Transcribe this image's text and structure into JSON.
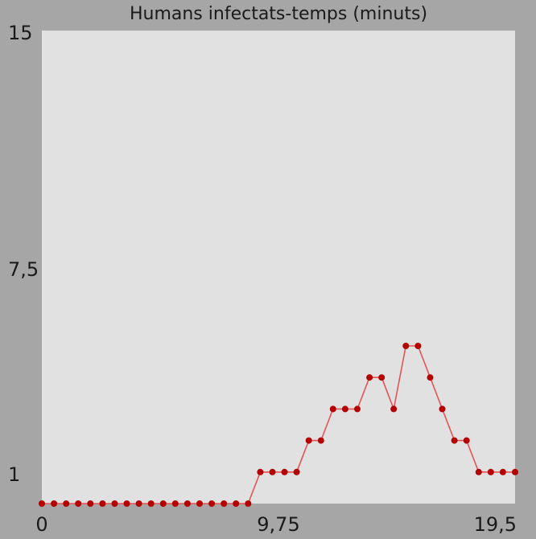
{
  "chart_data": {
    "type": "line",
    "title": "Humans infectats-temps (minuts)",
    "xlabel": "",
    "ylabel": "",
    "xlim": [
      0,
      19.5
    ],
    "ylim": [
      0,
      15
    ],
    "x_ticks": [
      {
        "value": 0,
        "label": "0"
      },
      {
        "value": 9.75,
        "label": "9,75"
      },
      {
        "value": 19.5,
        "label": "19,5"
      }
    ],
    "y_ticks": [
      {
        "value": 1,
        "label": "1"
      },
      {
        "value": 7.5,
        "label": "7,5"
      },
      {
        "value": 15,
        "label": "15"
      }
    ],
    "grid": false,
    "legend": "none",
    "series": [
      {
        "x": [
          0,
          0.5,
          1,
          1.5,
          2,
          2.5,
          3,
          3.5,
          4,
          4.5,
          5,
          5.5,
          6,
          6.5,
          7,
          7.5,
          8,
          8.5,
          9,
          9.5,
          10,
          10.5,
          11,
          11.5,
          12,
          12.5,
          13,
          13.5,
          14,
          14.5,
          15,
          15.5,
          16,
          16.5,
          17,
          17.5,
          18,
          18.5,
          19,
          19.5
        ],
        "y": [
          0,
          0,
          0,
          0,
          0,
          0,
          0,
          0,
          0,
          0,
          0,
          0,
          0,
          0,
          0,
          0,
          0,
          0,
          1,
          1,
          1,
          1,
          2,
          2,
          3,
          3,
          3,
          4,
          4,
          3,
          5,
          5,
          4,
          3,
          2,
          2,
          1,
          1,
          1,
          1
        ]
      }
    ]
  },
  "colors": {
    "background": "#a6a6a6",
    "plot_area": "#e1e1e1",
    "series_line": "#e25555",
    "series_marker": "#b30000",
    "text": "#1a1a1a"
  }
}
